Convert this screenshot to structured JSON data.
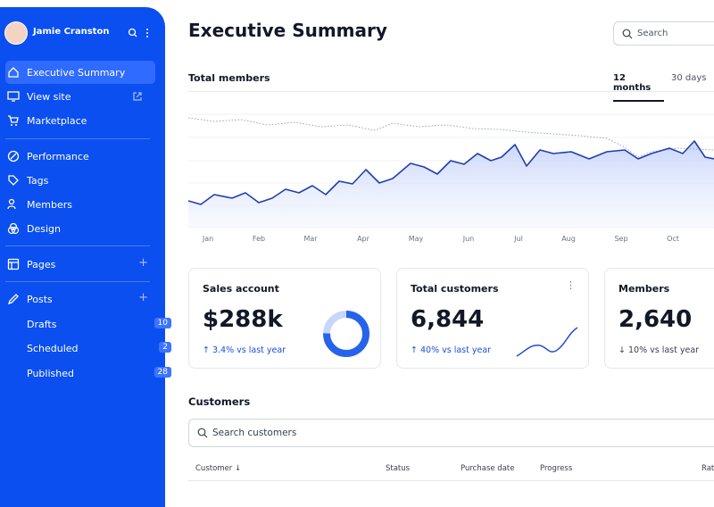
{
  "sidebar": {
    "user_name": "Jamie Cranston",
    "nav_primary": [
      "Executive Summary",
      "View site",
      "Marketplace"
    ],
    "nav_secondary": [
      "Performance",
      "Tags",
      "Members",
      "Design"
    ],
    "pages": "Pages",
    "posts": {
      "label": "Posts",
      "items": [
        {
          "label": "Drafts",
          "count": 10
        },
        {
          "label": "Scheduled",
          "count": 2
        },
        {
          "label": "Published",
          "count": 28
        }
      ]
    }
  },
  "header": {
    "title": "Executive Summary",
    "search": "Search"
  },
  "members_chart": {
    "title": "Total members",
    "tabs": [
      "12 months",
      "30 days"
    ],
    "months": [
      "Jan",
      "Feb",
      "Mar",
      "Apr",
      "May",
      "Jun",
      "Jul",
      "Aug",
      "Sep",
      "Oct"
    ]
  },
  "cards": [
    {
      "title": "Sales account",
      "value": "$288k",
      "change": "3.4% vs last year"
    },
    {
      "title": "Total customers",
      "value": "6,844",
      "change": "40% vs last year"
    },
    {
      "title": "Members",
      "value": "2,640",
      "change": "10% vs last year"
    }
  ],
  "customers": {
    "title": "Customers",
    "search": "Search customers",
    "columns": [
      "Customer",
      "Status",
      "Purchase date",
      "Progress",
      "Rating"
    ]
  }
}
